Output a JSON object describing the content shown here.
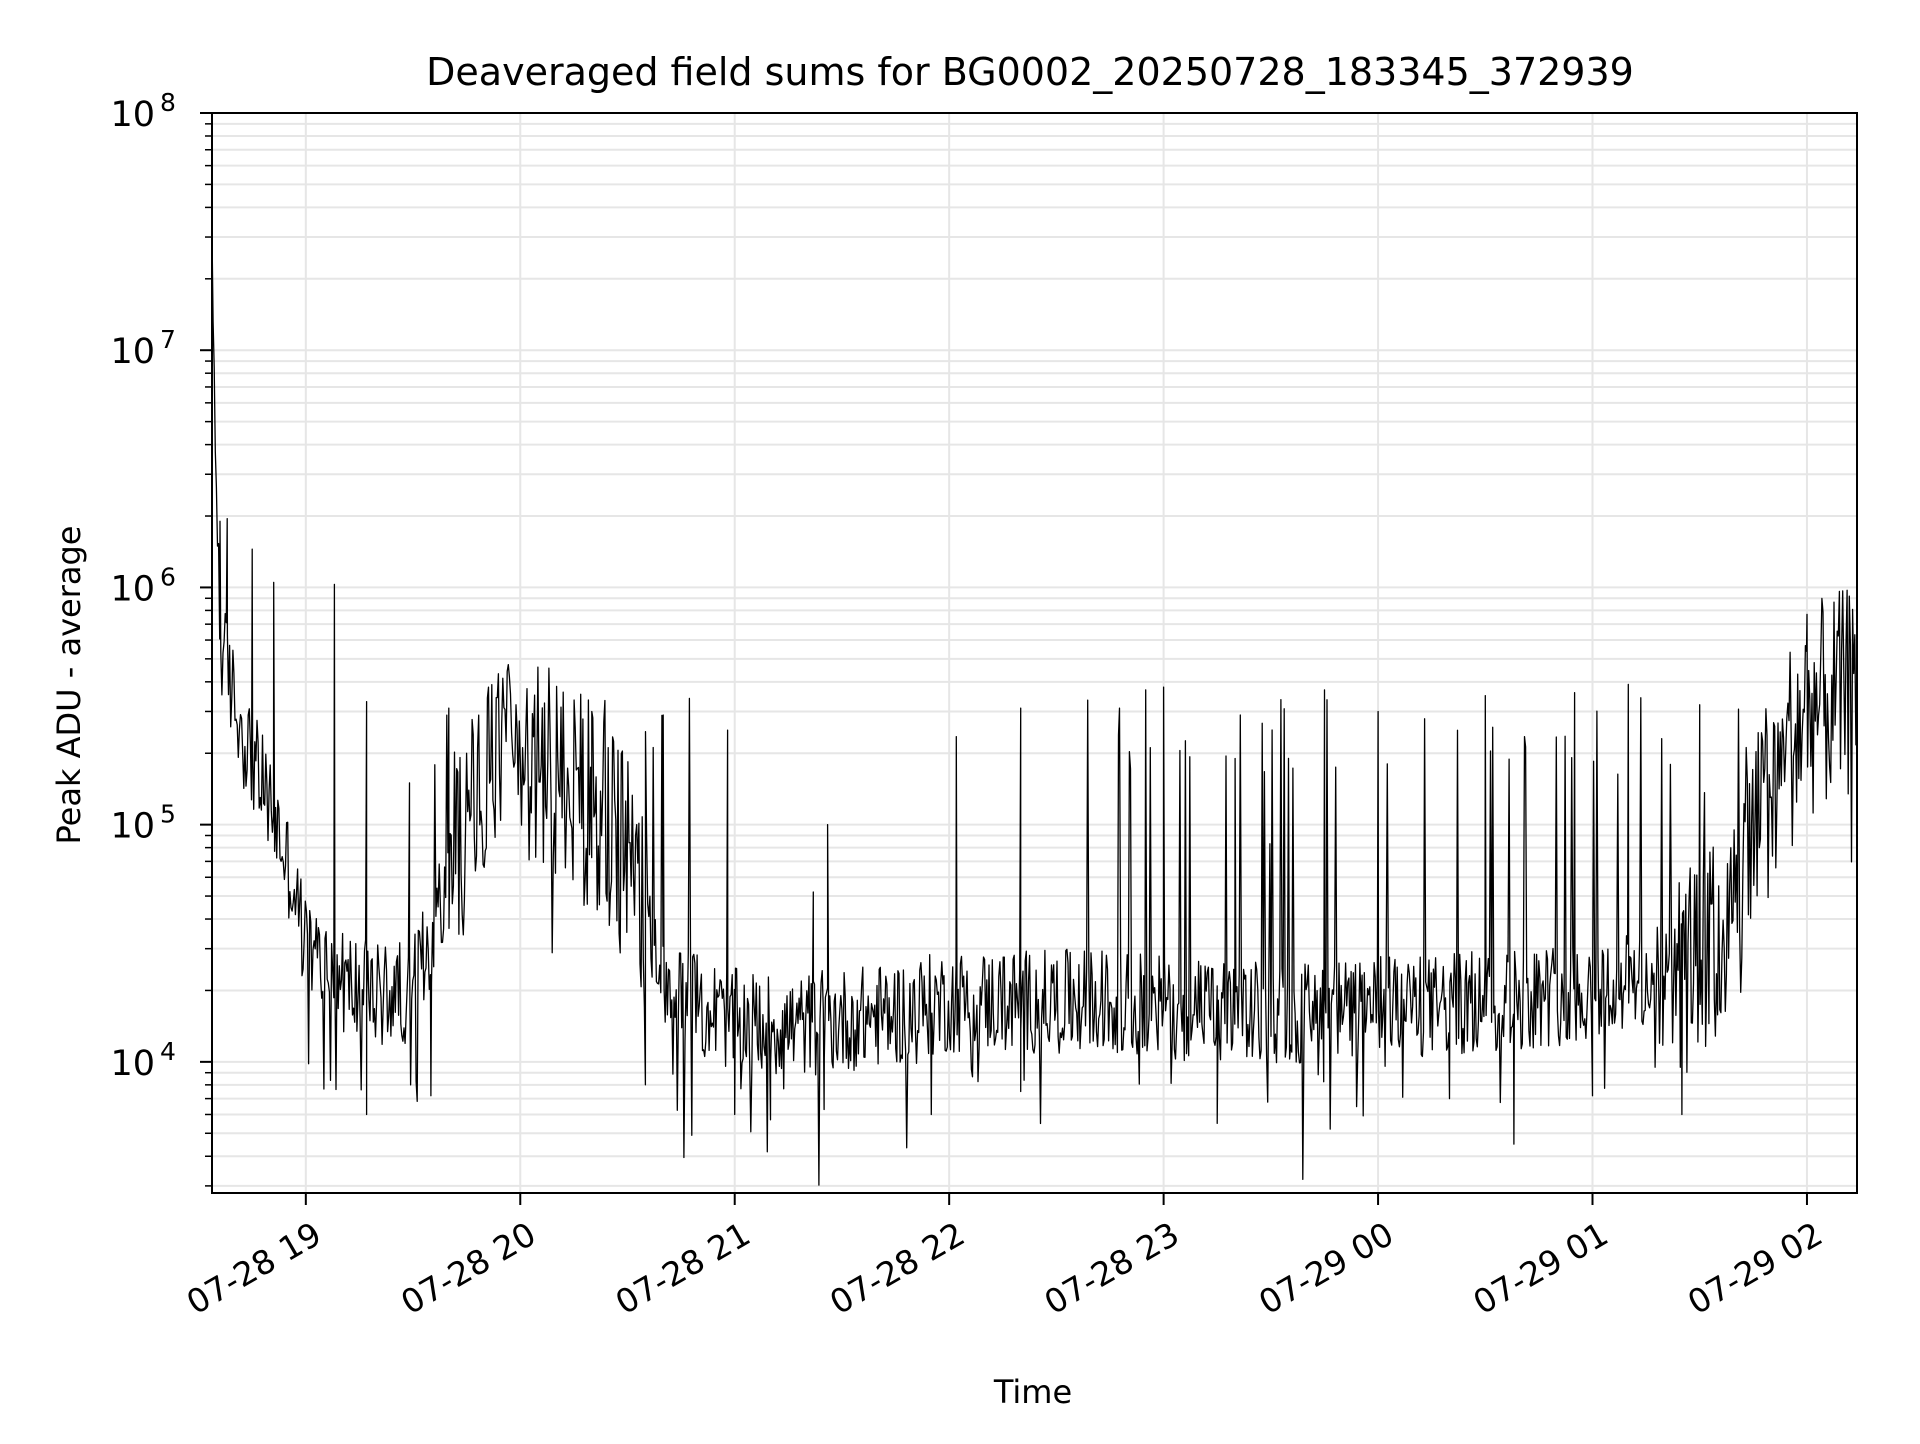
{
  "chart_data": {
    "type": "line",
    "title": "Deaveraged field sums for BG0002_20250728_183345_372939",
    "xlabel": "Time",
    "ylabel": "Peak ADU - average",
    "y_scale": "log",
    "ylim": [
      2800,
      100000000
    ],
    "xlim": [
      "2025-07-28 18:33:45",
      "2025-07-29 02:14:00"
    ],
    "grid": true,
    "legend": "none",
    "line_color": "#000000",
    "grid_color": "#e6e6e6",
    "x_ticks": [
      {
        "t": "2025-07-28 19:00",
        "label": "07-28 19"
      },
      {
        "t": "2025-07-28 20:00",
        "label": "07-28 20"
      },
      {
        "t": "2025-07-28 21:00",
        "label": "07-28 21"
      },
      {
        "t": "2025-07-28 22:00",
        "label": "07-28 22"
      },
      {
        "t": "2025-07-28 23:00",
        "label": "07-28 23"
      },
      {
        "t": "2025-07-29 00:00",
        "label": "07-29 00"
      },
      {
        "t": "2025-07-29 01:00",
        "label": "07-29 01"
      },
      {
        "t": "2025-07-29 02:00",
        "label": "07-29 02"
      }
    ],
    "y_ticks": [
      {
        "value": 10000,
        "base": "10",
        "exp": "4"
      },
      {
        "value": 100000,
        "base": "10",
        "exp": "5"
      },
      {
        "value": 1000000,
        "base": "10",
        "exp": "6"
      },
      {
        "value": 10000000,
        "base": "10",
        "exp": "7"
      },
      {
        "value": 100000000,
        "base": "10",
        "exp": "8"
      }
    ],
    "series": [
      {
        "values": [
          [
            "2025-07-28 18:33:45",
            20000000
          ],
          [
            "2025-07-28 18:36",
            600000
          ],
          [
            "2025-07-28 18:42",
            250000
          ],
          [
            "2025-07-28 18:50",
            120000
          ],
          [
            "2025-07-28 18:56",
            60000
          ],
          [
            "2025-07-28 19:00",
            30000
          ],
          [
            "2025-07-28 19:10",
            22000
          ],
          [
            "2025-07-28 19:20",
            19000
          ],
          [
            "2025-07-28 19:30",
            20000
          ],
          [
            "2025-07-28 19:40",
            60000
          ],
          [
            "2025-07-28 19:50",
            150000
          ],
          [
            "2025-07-28 20:00",
            180000
          ],
          [
            "2025-07-28 20:10",
            160000
          ],
          [
            "2025-07-28 20:20",
            120000
          ],
          [
            "2025-07-28 20:30",
            70000
          ],
          [
            "2025-07-28 20:40",
            22000
          ],
          [
            "2025-07-28 20:50",
            17000
          ],
          [
            "2025-07-28 21:00",
            15000
          ],
          [
            "2025-07-28 21:15",
            14000
          ],
          [
            "2025-07-28 21:30",
            15000
          ],
          [
            "2025-07-28 21:45",
            16000
          ],
          [
            "2025-07-28 22:00",
            18000
          ],
          [
            "2025-07-28 22:15",
            18000
          ],
          [
            "2025-07-28 22:30",
            18000
          ],
          [
            "2025-07-28 22:45",
            18000
          ],
          [
            "2025-07-28 23:00",
            17000
          ],
          [
            "2025-07-28 23:15",
            16000
          ],
          [
            "2025-07-28 23:30",
            16000
          ],
          [
            "2025-07-28 23:45",
            16000
          ],
          [
            "2025-07-29 00:00",
            17000
          ],
          [
            "2025-07-29 00:15",
            17000
          ],
          [
            "2025-07-29 00:30",
            18000
          ],
          [
            "2025-07-29 00:45",
            19000
          ],
          [
            "2025-07-29 01:00",
            20000
          ],
          [
            "2025-07-29 01:15",
            22000
          ],
          [
            "2025-07-29 01:30",
            25000
          ],
          [
            "2025-07-29 01:40",
            40000
          ],
          [
            "2025-07-29 01:50",
            150000
          ],
          [
            "2025-07-29 02:00",
            300000
          ],
          [
            "2025-07-29 02:10",
            350000
          ],
          [
            "2025-07-29 02:14",
            380000
          ]
        ],
        "spikes": [
          [
            "2025-07-28 18:36",
            1900000
          ],
          [
            "2025-07-28 18:38",
            1950000
          ],
          [
            "2025-07-28 18:45",
            1450000
          ],
          [
            "2025-07-28 18:51",
            1050000
          ],
          [
            "2025-07-28 19:08",
            1030000
          ],
          [
            "2025-07-28 19:17",
            330000
          ],
          [
            "2025-07-28 19:29",
            150000
          ],
          [
            "2025-07-28 19:40",
            310000
          ],
          [
            "2025-07-28 19:55",
            350000
          ],
          [
            "2025-07-28 20:20",
            300000
          ],
          [
            "2025-07-28 20:40",
            290000
          ],
          [
            "2025-07-28 20:58",
            250000
          ],
          [
            "2025-07-28 21:22",
            52000
          ],
          [
            "2025-07-28 21:26",
            100000
          ],
          [
            "2025-07-28 22:02",
            235000
          ],
          [
            "2025-07-28 22:20",
            310000
          ],
          [
            "2025-07-28 22:55",
            370000
          ],
          [
            "2025-07-28 23:00",
            380000
          ],
          [
            "2025-07-28 23:20",
            190000
          ],
          [
            "2025-07-28 23:45",
            370000
          ],
          [
            "2025-07-29 00:00",
            300000
          ],
          [
            "2025-07-29 00:30",
            350000
          ],
          [
            "2025-07-29 00:55",
            360000
          ],
          [
            "2025-07-29 01:10",
            390000
          ],
          [
            "2025-07-29 01:30",
            320000
          ],
          [
            "2025-07-29 02:00",
            770000
          ]
        ],
        "dips": [
          [
            "2025-07-28 19:17",
            6000
          ],
          [
            "2025-07-28 19:35",
            7200
          ],
          [
            "2025-07-28 20:35",
            8000
          ],
          [
            "2025-07-28 20:48",
            4900
          ],
          [
            "2025-07-28 21:00",
            6000
          ],
          [
            "2025-07-28 21:10",
            5700
          ],
          [
            "2025-07-28 21:25",
            6300
          ],
          [
            "2025-07-28 21:55",
            6000
          ],
          [
            "2025-07-28 22:20",
            7500
          ],
          [
            "2025-07-28 23:15",
            5500
          ],
          [
            "2025-07-29 00:20",
            7000
          ],
          [
            "2025-07-29 00:38",
            4500
          ],
          [
            "2025-07-29 01:00",
            7200
          ],
          [
            "2025-07-29 01:25",
            6000
          ]
        ]
      }
    ]
  }
}
